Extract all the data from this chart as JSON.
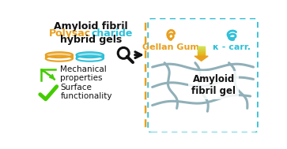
{
  "bg_color": "#ffffff",
  "orange": "#e8a020",
  "cyan": "#30c0d8",
  "green": "#44cc00",
  "black": "#111111",
  "fibril_color": "#90b0b8",
  "gellan_label": "Gellan Gum",
  "carr_label": "κ - carr.",
  "fibril_label": "Amyloid\nfibril gel",
  "mech_label": "Mechanical\nproperties",
  "surf_label": "Surface\nfunctionality",
  "grad_top": "#d0e860",
  "grad_bot": "#e8a020"
}
